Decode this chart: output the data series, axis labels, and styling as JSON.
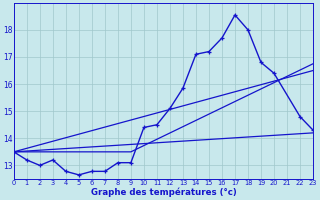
{
  "xlabel": "Graphe des températures (°c)",
  "bg_color": "#c8e8ec",
  "line_color": "#1515cc",
  "grid_color": "#a0c8cc",
  "hours": [
    0,
    1,
    2,
    3,
    4,
    5,
    6,
    7,
    8,
    9,
    10,
    11,
    12,
    13,
    14,
    15,
    16,
    17,
    18,
    19,
    20,
    22,
    23
  ],
  "temps": [
    13.5,
    13.2,
    13.0,
    13.2,
    12.78,
    12.65,
    12.78,
    12.78,
    13.1,
    13.1,
    14.4,
    14.5,
    15.1,
    15.85,
    17.1,
    17.2,
    17.7,
    18.55,
    18.0,
    16.8,
    16.4,
    14.8,
    14.3
  ],
  "line2_x": [
    0,
    23
  ],
  "line2_y": [
    13.5,
    16.5
  ],
  "line3_x": [
    0,
    23
  ],
  "line3_y": [
    13.5,
    14.2
  ],
  "line4_x": [
    0,
    9,
    23
  ],
  "line4_y": [
    13.5,
    13.5,
    16.75
  ],
  "ylim": [
    12.5,
    19.0
  ],
  "xlim": [
    0,
    23
  ],
  "yticks": [
    13,
    14,
    15,
    16,
    17,
    18
  ],
  "xticks": [
    0,
    1,
    2,
    3,
    4,
    5,
    6,
    7,
    8,
    9,
    10,
    11,
    12,
    13,
    14,
    15,
    16,
    17,
    18,
    19,
    20,
    21,
    22,
    23
  ],
  "figw": 3.2,
  "figh": 2.0,
  "dpi": 100
}
